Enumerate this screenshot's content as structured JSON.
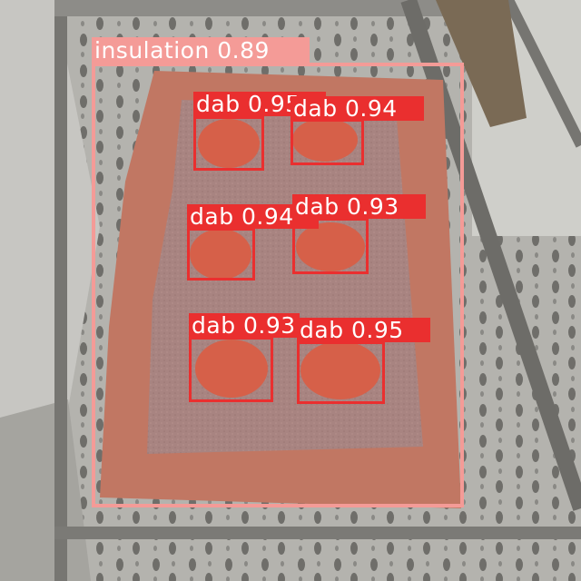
{
  "image": {
    "description_colors": {
      "scaffold_deck": "#a9a8a3",
      "insulation_board": "#b58c88",
      "adhesive_border": "#c8705e",
      "adhesive_dab": "#d85e48",
      "box_insulation": "#f49b97",
      "box_dab": "#ea2f2f"
    }
  },
  "detections": [
    {
      "label": "insulation 0.89",
      "class": "insulation"
    },
    {
      "label": "dab 0.95",
      "class": "dab"
    },
    {
      "label": "dab 0.94",
      "class": "dab"
    },
    {
      "label": "dab 0.94",
      "class": "dab"
    },
    {
      "label": "dab 0.93",
      "class": "dab"
    },
    {
      "label": "dab 0.93",
      "class": "dab"
    },
    {
      "label": "dab 0.95",
      "class": "dab"
    }
  ]
}
